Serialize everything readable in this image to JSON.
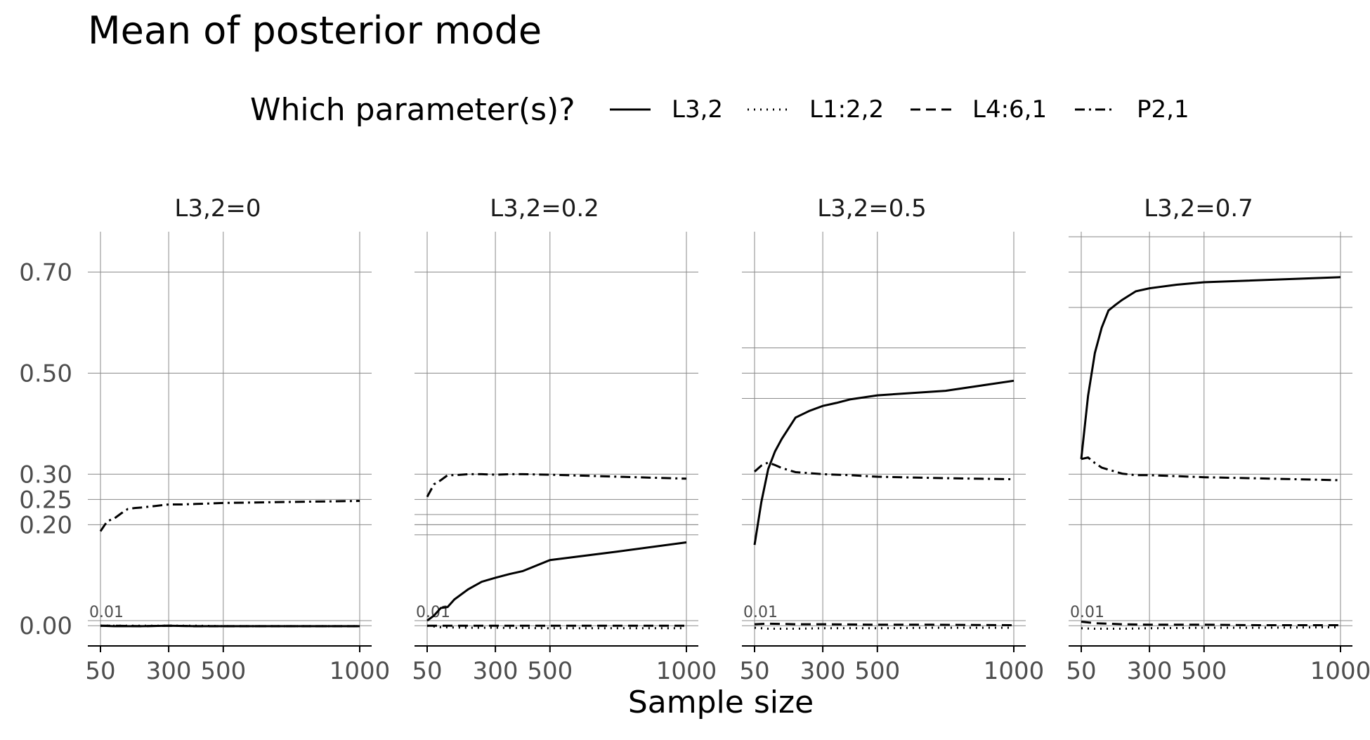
{
  "title": "Mean of posterior mode",
  "legend": {
    "title": "Which parameter(s)?",
    "entries": [
      {
        "label": "L3,2",
        "linetype": "solid"
      },
      {
        "label": "L1:2,2",
        "linetype": "dotted"
      },
      {
        "label": "L4:6,1",
        "linetype": "dashed"
      },
      {
        "label": "P2,1",
        "linetype": "dotdash"
      }
    ]
  },
  "chart_data": {
    "type": "line",
    "title": "Mean of posterior mode",
    "xlabel": "Sample size",
    "ylabel": "",
    "x_ticks": [
      50,
      300,
      500,
      1000
    ],
    "y_ticks": [
      0.0,
      0.2,
      0.25,
      0.3,
      0.5,
      0.7
    ],
    "y_tick_labels": [
      "0.00",
      "0.20",
      "0.25",
      "0.30",
      "0.50",
      "0.70"
    ],
    "xlim": [
      50,
      1000
    ],
    "ylim": [
      -0.04,
      0.78
    ],
    "annotation_text": "0.01",
    "panels": [
      {
        "label": "L3,2=0",
        "extra_hlines": [
          0.01
        ],
        "series": [
          {
            "name": "L3,2",
            "linetype": "solid",
            "x": [
              50,
              100,
              200,
              300,
              400,
              500,
              700,
              1000
            ],
            "y": [
              0.0,
              -0.001,
              -0.001,
              0.0,
              -0.001,
              -0.001,
              -0.001,
              -0.001
            ]
          },
          {
            "name": "L1:2,2",
            "linetype": "dotted",
            "x": [
              50,
              100,
              200,
              300,
              400,
              500,
              700,
              1000
            ],
            "y": [
              0.0,
              0.0,
              0.0,
              0.0,
              0.0,
              -0.001,
              -0.001,
              -0.001
            ]
          },
          {
            "name": "L4:6,1",
            "linetype": "dashed",
            "x": [
              50,
              100,
              200,
              300,
              400,
              500,
              700,
              1000
            ],
            "y": [
              0.0,
              0.0,
              -0.001,
              0.0,
              -0.001,
              -0.001,
              -0.001,
              -0.001
            ]
          },
          {
            "name": "P2,1",
            "linetype": "dotdash",
            "x": [
              50,
              75,
              100,
              125,
              150,
              175,
              200,
              250,
              300,
              350,
              400,
              500,
              750,
              1000
            ],
            "y": [
              0.187,
              0.207,
              0.212,
              0.222,
              0.231,
              0.233,
              0.234,
              0.237,
              0.24,
              0.24,
              0.241,
              0.243,
              0.245,
              0.247
            ]
          }
        ]
      },
      {
        "label": "L3,2=0.2",
        "extra_hlines": [
          0.01,
          0.18,
          0.2,
          0.22
        ],
        "series": [
          {
            "name": "L3,2",
            "linetype": "solid",
            "x": [
              50,
              75,
              100,
              125,
              150,
              200,
              250,
              300,
              350,
              400,
              500,
              750,
              1000
            ],
            "y": [
              0.01,
              0.02,
              0.035,
              0.037,
              0.052,
              0.072,
              0.087,
              0.095,
              0.102,
              0.108,
              0.13,
              0.147,
              0.165
            ]
          },
          {
            "name": "L1:2,2",
            "linetype": "dotted",
            "x": [
              50,
              100,
              200,
              300,
              500,
              700,
              1000
            ],
            "y": [
              0.0,
              -0.003,
              -0.004,
              -0.004,
              -0.005,
              -0.005,
              -0.005
            ]
          },
          {
            "name": "L4:6,1",
            "linetype": "dashed",
            "x": [
              50,
              100,
              200,
              300,
              500,
              700,
              1000
            ],
            "y": [
              0.0,
              0.0,
              0.0,
              0.0,
              0.0,
              0.0,
              0.0
            ]
          },
          {
            "name": "P2,1",
            "linetype": "dotdash",
            "x": [
              50,
              75,
              100,
              125,
              150,
              200,
              250,
              300,
              350,
              400,
              500,
              750,
              1000
            ],
            "y": [
              0.255,
              0.28,
              0.288,
              0.298,
              0.298,
              0.3,
              0.3,
              0.299,
              0.3,
              0.3,
              0.299,
              0.295,
              0.291
            ]
          }
        ]
      },
      {
        "label": "L3,2=0.5",
        "extra_hlines": [
          0.01,
          0.45,
          0.55
        ],
        "series": [
          {
            "name": "L3,2",
            "linetype": "solid",
            "x": [
              50,
              75,
              100,
              125,
              150,
              200,
              250,
              300,
              350,
              400,
              500,
              750,
              1000
            ],
            "y": [
              0.16,
              0.245,
              0.31,
              0.345,
              0.37,
              0.412,
              0.425,
              0.435,
              0.441,
              0.448,
              0.456,
              0.465,
              0.485
            ]
          },
          {
            "name": "L1:2,2",
            "linetype": "dotted",
            "x": [
              50,
              100,
              200,
              300,
              500,
              700,
              1000
            ],
            "y": [
              -0.004,
              -0.006,
              -0.006,
              -0.005,
              -0.005,
              -0.004,
              -0.004
            ]
          },
          {
            "name": "L4:6,1",
            "linetype": "dashed",
            "x": [
              50,
              100,
              200,
              300,
              500,
              700,
              1000
            ],
            "y": [
              0.003,
              0.004,
              0.003,
              0.003,
              0.002,
              0.002,
              0.001
            ]
          },
          {
            "name": "P2,1",
            "linetype": "dotdash",
            "x": [
              50,
              75,
              100,
              125,
              150,
              200,
              250,
              300,
              400,
              500,
              750,
              1000
            ],
            "y": [
              0.305,
              0.317,
              0.323,
              0.318,
              0.312,
              0.304,
              0.302,
              0.3,
              0.298,
              0.295,
              0.292,
              0.29
            ]
          }
        ]
      },
      {
        "label": "L3,2=0.7",
        "extra_hlines": [
          0.01,
          0.63,
          0.77
        ],
        "series": [
          {
            "name": "L3,2",
            "linetype": "solid",
            "x": [
              50,
              75,
              100,
              125,
              150,
              175,
              200,
              250,
              300,
              400,
              500,
              1000
            ],
            "y": [
              0.33,
              0.455,
              0.54,
              0.59,
              0.624,
              0.635,
              0.645,
              0.662,
              0.668,
              0.675,
              0.68,
              0.69
            ]
          },
          {
            "name": "L1:2,2",
            "linetype": "dotted",
            "x": [
              50,
              100,
              200,
              300,
              500,
              700,
              1000
            ],
            "y": [
              -0.005,
              -0.006,
              -0.006,
              -0.005,
              -0.004,
              -0.004,
              -0.003
            ]
          },
          {
            "name": "L4:6,1",
            "linetype": "dashed",
            "x": [
              50,
              100,
              200,
              300,
              500,
              700,
              1000
            ],
            "y": [
              0.008,
              0.005,
              0.003,
              0.002,
              0.002,
              0.001,
              0.001
            ]
          },
          {
            "name": "P2,1",
            "linetype": "dotdash",
            "x": [
              50,
              75,
              100,
              125,
              150,
              200,
              250,
              300,
              400,
              500,
              750,
              1000
            ],
            "y": [
              0.33,
              0.333,
              0.322,
              0.313,
              0.309,
              0.301,
              0.298,
              0.298,
              0.296,
              0.294,
              0.291,
              0.288
            ]
          }
        ]
      }
    ]
  }
}
